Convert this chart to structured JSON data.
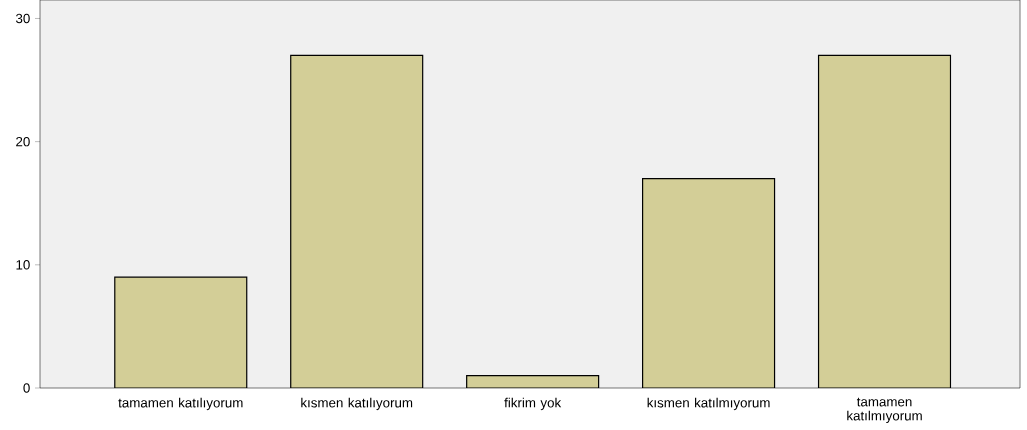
{
  "chart_data": {
    "type": "bar",
    "categories": [
      "tamamen katılıyorum",
      "kısmen katılıyorum",
      "fikrim yok",
      "kısmen katılmıyorum",
      "tamamen katılmıyorum"
    ],
    "values": [
      9,
      27,
      1,
      17,
      27
    ],
    "color": "#d3ce97",
    "ylim": [
      0,
      31.5
    ],
    "yticks": [
      0,
      10,
      20,
      30
    ]
  }
}
